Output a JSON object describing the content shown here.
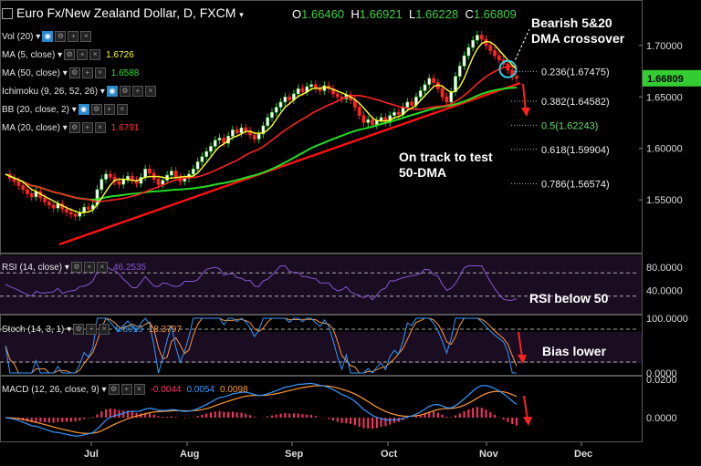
{
  "header": {
    "title": "Euro Fx/New Zealand Dollar, D, FXCM",
    "ohlc": [
      {
        "k": "O",
        "v": "1.66460"
      },
      {
        "k": "H",
        "v": "1.66921"
      },
      {
        "k": "L",
        "v": "1.66228"
      },
      {
        "k": "C",
        "v": "1.66809"
      }
    ]
  },
  "indicators": [
    {
      "label": "Vol (20)",
      "value": "",
      "color": "#ffffff"
    },
    {
      "label": "MA (5, close)",
      "value": "1.6726",
      "color": "#ffff33"
    },
    {
      "label": "MA (50, close)",
      "value": "1.6588",
      "color": "#33dd33"
    },
    {
      "label": "Ichimoku (9, 26, 52, 26)",
      "value": "",
      "color": "#ffffff"
    },
    {
      "label": "BB (20, close, 2)",
      "value": "",
      "color": "#ffffff"
    },
    {
      "label": "MA (20, close)",
      "value": "1.6791",
      "color": "#ff3333"
    }
  ],
  "annotations": {
    "crossover": [
      "Bearish 5&20",
      "DMA crossover"
    ],
    "test50": [
      "On track to test",
      "50-DMA"
    ],
    "rsi": "RSI below 50",
    "bias": "Bias lower"
  },
  "sub_panels": {
    "rsi": {
      "label": "RSI (14, close)",
      "value": "46.2535"
    },
    "stoch": {
      "label": "Stoch (14, 3, 1)",
      "k": "9.8059",
      "d": "18.3797"
    },
    "macd": {
      "label": "MACD (12, 26, close, 9)",
      "hist": "-0.0044",
      "macd": "0.0054",
      "signal": "0.0098"
    }
  },
  "price_badge": "1.66809",
  "colors": {
    "up": "#33cc33",
    "down": "#ff2222",
    "ma5": "#ffff33",
    "ma20": "#ff2222",
    "ma50": "#22dd22",
    "trend": "#ff1111",
    "annot": "#ffffff",
    "rsi": "#8855cc",
    "stoch_k": "#3399ff",
    "stoch_d": "#ff9933",
    "macd": "#3399ff",
    "signal": "#ff9933",
    "hist": "#ff3366",
    "badge": "#33cc33"
  },
  "chart_data": {
    "type": "candlestick",
    "title": "Euro Fx/New Zealand Dollar, D, FXCM",
    "price_axis": {
      "range": [
        1.505,
        1.737
      ],
      "ticks": [
        "1.70000",
        "1.65000",
        "1.60000",
        "1.55000"
      ]
    },
    "x_axis": {
      "ticks": [
        "Jul",
        "Aug",
        "Sep",
        "Oct",
        "Nov",
        "Dec"
      ]
    },
    "fib_levels": [
      {
        "label": "0.236(1.67475)",
        "value": 1.67475
      },
      {
        "label": "0.382(1.64582)",
        "value": 1.64582
      },
      {
        "label": "0.5(1.62243)",
        "value": 1.62243
      },
      {
        "label": "0.618(1.59904)",
        "value": 1.59904
      },
      {
        "label": "0.786(1.56574)",
        "value": 1.56574
      }
    ],
    "closes": [
      1.575,
      1.571,
      1.568,
      1.564,
      1.56,
      1.556,
      1.553,
      1.558,
      1.552,
      1.548,
      1.545,
      1.542,
      1.546,
      1.541,
      1.538,
      1.536,
      1.534,
      1.538,
      1.543,
      1.541,
      1.545,
      1.56,
      1.57,
      1.575,
      1.572,
      1.568,
      1.565,
      1.57,
      1.573,
      1.569,
      1.566,
      1.572,
      1.58,
      1.576,
      1.57,
      1.565,
      1.569,
      1.574,
      1.578,
      1.572,
      1.568,
      1.571,
      1.575,
      1.58,
      1.587,
      1.592,
      1.597,
      1.602,
      1.608,
      1.61,
      1.605,
      1.612,
      1.618,
      1.615,
      1.62,
      1.617,
      1.613,
      1.609,
      1.614,
      1.622,
      1.63,
      1.635,
      1.64,
      1.645,
      1.65,
      1.647,
      1.653,
      1.658,
      1.655,
      1.66,
      1.662,
      1.658,
      1.656,
      1.661,
      1.658,
      1.653,
      1.65,
      1.648,
      1.652,
      1.647,
      1.64,
      1.632,
      1.625,
      1.628,
      1.623,
      1.627,
      1.63,
      1.625,
      1.632,
      1.635,
      1.633,
      1.64,
      1.645,
      1.642,
      1.65,
      1.656,
      1.662,
      1.668,
      1.664,
      1.658,
      1.65,
      1.645,
      1.655,
      1.67,
      1.68,
      1.69,
      1.698,
      1.705,
      1.71,
      1.706,
      1.7,
      1.695,
      1.69,
      1.686,
      1.682,
      1.676,
      1.67,
      1.6681
    ],
    "ma_values_shown": {
      "ma5": 1.6726,
      "ma20": 1.6791,
      "ma50": 1.6588
    },
    "rsi": {
      "axis_ticks": [
        "80.0000",
        "40.0000"
      ],
      "levels": [
        70,
        30
      ],
      "last": 46.2535
    },
    "stoch": {
      "axis_ticks": [
        "100.0000",
        "0.0000"
      ],
      "levels": [
        80,
        20
      ],
      "k_last": 9.8059,
      "d_last": 18.3797
    },
    "macd": {
      "axis_ticks": [
        "0.0200",
        "0.0000"
      ],
      "macd_last": 0.0054,
      "signal_last": 0.0098,
      "hist_last": -0.0044
    }
  }
}
